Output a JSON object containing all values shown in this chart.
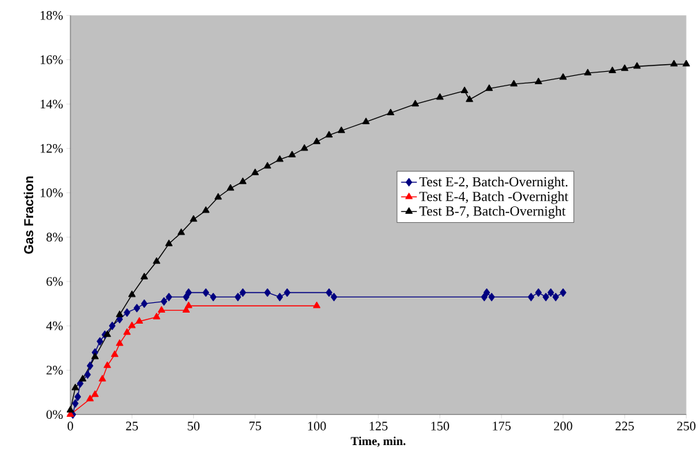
{
  "chart_data": {
    "type": "line",
    "xlabel": "Time, min.",
    "ylabel": "Gas Fraction",
    "xlim": [
      0,
      250
    ],
    "xticks": [
      0,
      25,
      50,
      75,
      100,
      125,
      150,
      175,
      200,
      225,
      250
    ],
    "ylim": [
      0,
      18
    ],
    "yticks": [
      {
        "value": 0,
        "label": "0%"
      },
      {
        "value": 2,
        "label": "2%"
      },
      {
        "value": 4,
        "label": "4%"
      },
      {
        "value": 6,
        "label": "6%"
      },
      {
        "value": 8,
        "label": "8%"
      },
      {
        "value": 10,
        "label": "10%"
      },
      {
        "value": 12,
        "label": "12%"
      },
      {
        "value": 14,
        "label": "14%"
      },
      {
        "value": 16,
        "label": "16%"
      },
      {
        "value": 18,
        "label": "18%"
      }
    ],
    "grid": false,
    "legend": "right",
    "line_style": "solid",
    "series": [
      {
        "name": "Test E-2, Batch-Overnight.",
        "color": "#000080",
        "marker": "diamond",
        "x": [
          1,
          2,
          3,
          4,
          7,
          8,
          10,
          12,
          14,
          17,
          20,
          23,
          27,
          30,
          38,
          40,
          47,
          48,
          55,
          58,
          68,
          70,
          80,
          85,
          88,
          105,
          107,
          168,
          169,
          171,
          187,
          190,
          193,
          195,
          197,
          200
        ],
        "values": [
          0,
          0.5,
          0.8,
          1.4,
          1.8,
          2.2,
          2.8,
          3.3,
          3.6,
          4.0,
          4.3,
          4.6,
          4.8,
          5.0,
          5.1,
          5.3,
          5.3,
          5.5,
          5.5,
          5.3,
          5.3,
          5.5,
          5.5,
          5.3,
          5.5,
          5.5,
          5.3,
          5.3,
          5.5,
          5.3,
          5.3,
          5.5,
          5.3,
          5.5,
          5.3,
          5.5
        ]
      },
      {
        "name": "Test E-4, Batch -Overnight",
        "color": "#ff0000",
        "marker": "triangle",
        "x": [
          0,
          8,
          10,
          13,
          15,
          18,
          20,
          23,
          25,
          28,
          35,
          37,
          47,
          48,
          100
        ],
        "values": [
          0,
          0.7,
          0.9,
          1.6,
          2.2,
          2.7,
          3.2,
          3.7,
          4.0,
          4.2,
          4.4,
          4.7,
          4.7,
          4.9,
          4.9
        ]
      },
      {
        "name": "Test B-7, Batch-Overnight",
        "color": "#000000",
        "marker": "triangle",
        "x": [
          0,
          2,
          5,
          10,
          15,
          20,
          25,
          30,
          35,
          40,
          45,
          50,
          55,
          60,
          65,
          70,
          75,
          80,
          85,
          90,
          95,
          100,
          105,
          110,
          120,
          130,
          140,
          150,
          160,
          162,
          170,
          180,
          190,
          200,
          210,
          220,
          225,
          230,
          245,
          250
        ],
        "values": [
          0.2,
          1.2,
          1.6,
          2.6,
          3.6,
          4.5,
          5.4,
          6.2,
          6.9,
          7.7,
          8.2,
          8.8,
          9.2,
          9.8,
          10.2,
          10.5,
          10.9,
          11.2,
          11.5,
          11.7,
          12.0,
          12.3,
          12.6,
          12.8,
          13.2,
          13.6,
          14.0,
          14.3,
          14.6,
          14.2,
          14.7,
          14.9,
          15.0,
          15.2,
          15.4,
          15.5,
          15.6,
          15.7,
          15.8,
          15.8
        ]
      }
    ]
  }
}
